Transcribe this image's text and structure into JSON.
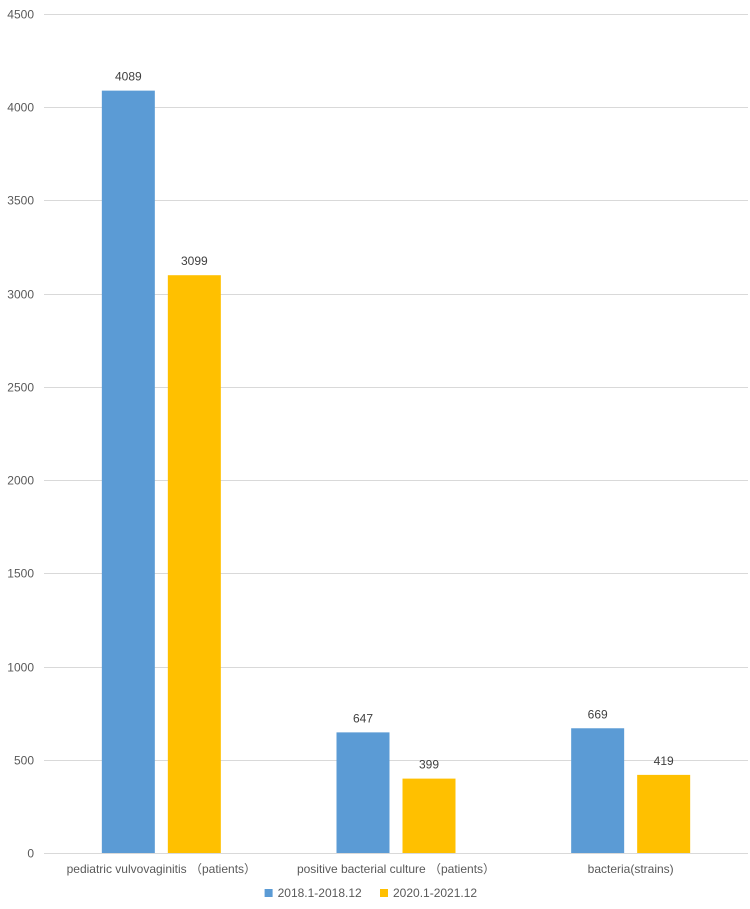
{
  "chart_data": {
    "type": "bar",
    "categories": [
      "pediatric vulvovaginitis （patients）",
      "positive bacterial culture （patients）",
      "bacteria(strains)"
    ],
    "series": [
      {
        "name": "2018.1-2018.12",
        "values": [
          4089,
          647,
          669
        ],
        "color": "#5b9bd5"
      },
      {
        "name": "2020.1-2021.12",
        "values": [
          3099,
          399,
          419
        ],
        "color": "#ffc000"
      }
    ],
    "ylim": [
      0,
      4500
    ],
    "yticks": [
      0,
      500,
      1000,
      1500,
      2000,
      2500,
      3000,
      3500,
      4000,
      4500
    ],
    "grid": true,
    "legend_position": "bottom-center",
    "title": "",
    "xlabel": "",
    "ylabel": ""
  }
}
